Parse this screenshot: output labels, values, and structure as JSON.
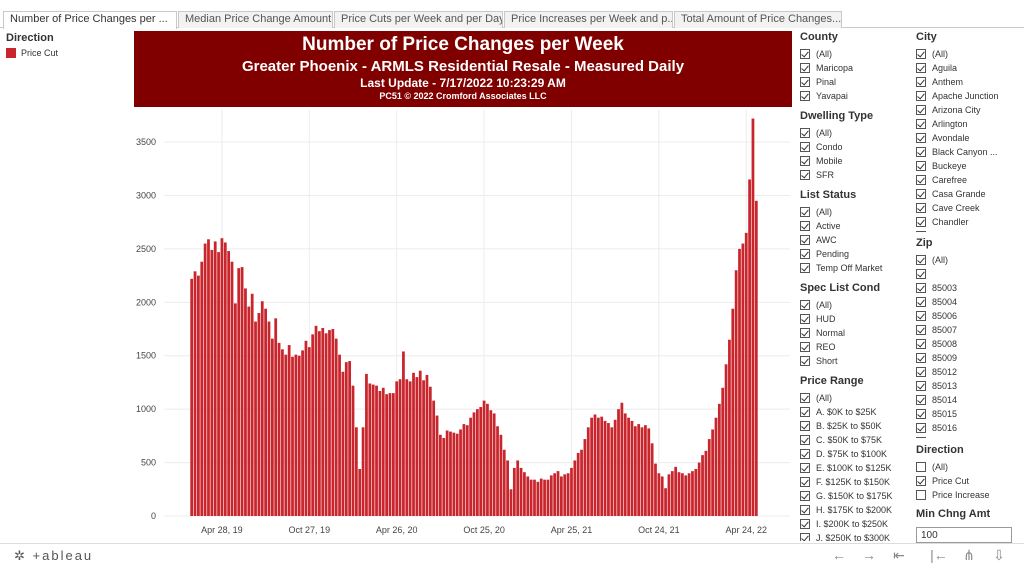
{
  "tabs": [
    {
      "label": "Number of Price Changes per ...",
      "active": true
    },
    {
      "label": "Median Price Change Amount",
      "active": false
    },
    {
      "label": "Price Cuts per Week and per Day",
      "active": false
    },
    {
      "label": "Price Increases per Week and p...",
      "active": false
    },
    {
      "label": "Total Amount of Price Changes...",
      "active": false
    }
  ],
  "legend": {
    "title": "Direction",
    "items": [
      {
        "label": "Price Cut",
        "color": "#c9252c"
      }
    ]
  },
  "header": {
    "title": "Number of Price Changes per Week",
    "subtitle": "Greater Phoenix - ARMLS Residential Resale - Measured Daily",
    "update": "Last Update - 7/17/2022 10:23:29 AM",
    "copyright": "PC51 © 2022 Cromford Associates LLC"
  },
  "chart_data": {
    "type": "bar",
    "title": "Number of Price Changes per Week",
    "xlabel": "",
    "ylabel": "",
    "ylim": [
      0,
      3800
    ],
    "yticks": [
      0,
      500,
      1000,
      1500,
      2000,
      2500,
      3000,
      3500
    ],
    "xticks": [
      {
        "label": "Apr 28, 19",
        "index": 9
      },
      {
        "label": "Oct 27, 19",
        "index": 35
      },
      {
        "label": "Apr 26, 20",
        "index": 61
      },
      {
        "label": "Oct 25, 20",
        "index": 87
      },
      {
        "label": "Apr 25, 21",
        "index": 113
      },
      {
        "label": "Oct 24, 21",
        "index": 139
      },
      {
        "label": "Apr 24, 22",
        "index": 165
      }
    ],
    "series": [
      {
        "name": "Price Cut",
        "color": "#c9252c",
        "values": [
          2220,
          2290,
          2250,
          2380,
          2550,
          2590,
          2490,
          2570,
          2470,
          2600,
          2560,
          2480,
          2380,
          1990,
          2320,
          2330,
          2130,
          1960,
          2080,
          1820,
          1900,
          2010,
          1940,
          1820,
          1660,
          1850,
          1620,
          1560,
          1510,
          1600,
          1490,
          1510,
          1500,
          1550,
          1640,
          1580,
          1700,
          1780,
          1730,
          1760,
          1710,
          1740,
          1750,
          1660,
          1510,
          1350,
          1440,
          1450,
          1220,
          830,
          440,
          830,
          1330,
          1240,
          1230,
          1220,
          1170,
          1200,
          1140,
          1150,
          1150,
          1260,
          1280,
          1540,
          1280,
          1260,
          1340,
          1300,
          1360,
          1270,
          1320,
          1210,
          1080,
          940,
          760,
          730,
          800,
          790,
          780,
          770,
          810,
          860,
          850,
          920,
          970,
          1000,
          1020,
          1080,
          1050,
          990,
          960,
          840,
          760,
          620,
          520,
          250,
          450,
          520,
          450,
          410,
          370,
          340,
          340,
          320,
          350,
          340,
          340,
          380,
          400,
          420,
          370,
          390,
          400,
          450,
          520,
          590,
          620,
          720,
          830,
          920,
          950,
          920,
          930,
          890,
          870,
          830,
          900,
          1000,
          1060,
          960,
          920,
          890,
          840,
          860,
          830,
          850,
          820,
          680,
          490,
          400,
          370,
          260,
          390,
          420,
          460,
          410,
          400,
          380,
          400,
          420,
          440,
          500,
          570,
          610,
          720,
          810,
          920,
          1050,
          1200,
          1420,
          1650,
          1940,
          2300,
          2500,
          2550,
          2650,
          3150,
          3720,
          2950
        ]
      }
    ]
  },
  "filters": {
    "county": {
      "title": "County",
      "items": [
        {
          "label": "(All)",
          "checked": true
        },
        {
          "label": "Maricopa",
          "checked": true
        },
        {
          "label": "Pinal",
          "checked": true
        },
        {
          "label": "Yavapai",
          "checked": true
        }
      ]
    },
    "dwelling": {
      "title": "Dwelling Type",
      "items": [
        {
          "label": "(All)",
          "checked": true
        },
        {
          "label": "Condo",
          "checked": true
        },
        {
          "label": "Mobile",
          "checked": true
        },
        {
          "label": "SFR",
          "checked": true
        }
      ]
    },
    "status": {
      "title": "List Status",
      "items": [
        {
          "label": "(All)",
          "checked": true
        },
        {
          "label": "Active",
          "checked": true
        },
        {
          "label": "AWC",
          "checked": true
        },
        {
          "label": "Pending",
          "checked": true
        },
        {
          "label": "Temp Off Market",
          "checked": true
        }
      ]
    },
    "spec": {
      "title": "Spec List Cond",
      "items": [
        {
          "label": "(All)",
          "checked": true
        },
        {
          "label": "HUD",
          "checked": true
        },
        {
          "label": "Normal",
          "checked": true
        },
        {
          "label": "REO",
          "checked": true
        },
        {
          "label": "Short",
          "checked": true
        }
      ]
    },
    "price": {
      "title": "Price Range",
      "items": [
        {
          "label": "(All)",
          "checked": true
        },
        {
          "label": "A. $0K to $25K",
          "checked": true
        },
        {
          "label": "B. $25K to $50K",
          "checked": true
        },
        {
          "label": "C. $50K to $75K",
          "checked": true
        },
        {
          "label": "D. $75K to $100K",
          "checked": true
        },
        {
          "label": "E. $100K to $125K",
          "checked": true
        },
        {
          "label": "F. $125K to $150K",
          "checked": true
        },
        {
          "label": "G. $150K to $175K",
          "checked": true
        },
        {
          "label": "H. $175K to $200K",
          "checked": true
        },
        {
          "label": "I. $200K to $250K",
          "checked": true
        },
        {
          "label": "J. $250K to $300K",
          "checked": true
        }
      ]
    },
    "city": {
      "title": "City",
      "items": [
        {
          "label": "(All)",
          "checked": true
        },
        {
          "label": "Aguila",
          "checked": true
        },
        {
          "label": "Anthem",
          "checked": true
        },
        {
          "label": "Apache Junction",
          "checked": true
        },
        {
          "label": "Arizona City",
          "checked": true
        },
        {
          "label": "Arlington",
          "checked": true
        },
        {
          "label": "Avondale",
          "checked": true
        },
        {
          "label": "Black Canyon ...",
          "checked": true
        },
        {
          "label": "Buckeye",
          "checked": true
        },
        {
          "label": "Carefree",
          "checked": true
        },
        {
          "label": "Casa Grande",
          "checked": true
        },
        {
          "label": "Cave Creek",
          "checked": true
        },
        {
          "label": "Chandler",
          "checked": true
        },
        {
          "label": "",
          "checked": true
        }
      ]
    },
    "zip": {
      "title": "Zip",
      "items": [
        {
          "label": "(All)",
          "checked": true
        },
        {
          "label": "",
          "checked": true
        },
        {
          "label": "85003",
          "checked": true
        },
        {
          "label": "85004",
          "checked": true
        },
        {
          "label": "85006",
          "checked": true
        },
        {
          "label": "85007",
          "checked": true
        },
        {
          "label": "85008",
          "checked": true
        },
        {
          "label": "85009",
          "checked": true
        },
        {
          "label": "85012",
          "checked": true
        },
        {
          "label": "85013",
          "checked": true
        },
        {
          "label": "85014",
          "checked": true
        },
        {
          "label": "85015",
          "checked": true
        },
        {
          "label": "85016",
          "checked": true
        },
        {
          "label": "",
          "checked": true
        }
      ]
    },
    "direction": {
      "title": "Direction",
      "items": [
        {
          "label": "(All)",
          "checked": false
        },
        {
          "label": "Price Cut",
          "checked": true
        },
        {
          "label": "Price Increase",
          "checked": false
        }
      ]
    }
  },
  "min_change": {
    "title": "Min Chng Amt",
    "value": "100"
  },
  "toolbar": {
    "logo": "+ableau",
    "icons": [
      "undo-icon",
      "redo-icon",
      "revert-icon",
      "reset-icon",
      "share-icon",
      "download-icon"
    ]
  }
}
